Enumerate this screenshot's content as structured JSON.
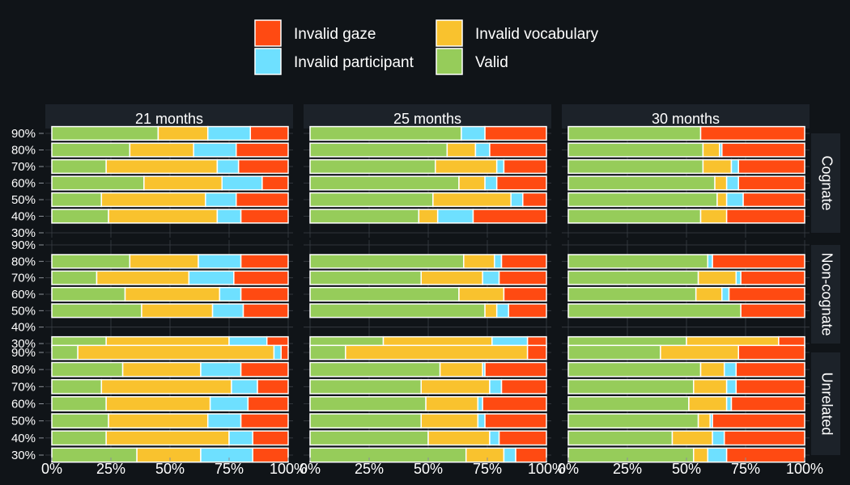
{
  "chart_data": {
    "type": "bar",
    "orientation": "horizontal",
    "stacked": true,
    "background": "#101418",
    "panel_color": "#101418",
    "strip_color": "#1c2229",
    "grid": true,
    "legend_position": "top",
    "legend": [
      {
        "name": "Invalid gaze",
        "color": "#ff4a12"
      },
      {
        "name": "Invalid vocabulary",
        "color": "#f9c22e"
      },
      {
        "name": "Invalid participant",
        "color": "#6ee0ff"
      },
      {
        "name": "Valid",
        "color": "#96cc5a"
      }
    ],
    "stack_order": [
      "Valid",
      "Invalid vocabulary",
      "Invalid participant",
      "Invalid gaze"
    ],
    "columns": [
      "21 months",
      "25 months",
      "30 months"
    ],
    "rows": [
      "Cognate",
      "Non-cognate",
      "Unrelated"
    ],
    "y_ticks": [
      "90%",
      "80%",
      "70%",
      "60%",
      "50%",
      "40%",
      "30%"
    ],
    "x_ticks": [
      "0%",
      "25%",
      "50%",
      "75%",
      "100%"
    ],
    "xlim": [
      0,
      1
    ],
    "panels": [
      {
        "column": "21 months",
        "row": "Cognate",
        "bars": [
          {
            "y": "90%",
            "valid": 0.45,
            "vocabulary": 0.21,
            "participant": 0.18,
            "gaze": 0.16
          },
          {
            "y": "80%",
            "valid": 0.33,
            "vocabulary": 0.27,
            "participant": 0.18,
            "gaze": 0.22
          },
          {
            "y": "70%",
            "valid": 0.23,
            "vocabulary": 0.47,
            "participant": 0.09,
            "gaze": 0.21
          },
          {
            "y": "60%",
            "valid": 0.39,
            "vocabulary": 0.33,
            "participant": 0.17,
            "gaze": 0.11
          },
          {
            "y": "50%",
            "valid": 0.21,
            "vocabulary": 0.44,
            "participant": 0.13,
            "gaze": 0.22
          },
          {
            "y": "40%",
            "valid": 0.24,
            "vocabulary": 0.46,
            "participant": 0.1,
            "gaze": 0.2
          }
        ]
      },
      {
        "column": "25 months",
        "row": "Cognate",
        "bars": [
          {
            "y": "90%",
            "valid": 0.64,
            "vocabulary": 0.0,
            "participant": 0.1,
            "gaze": 0.26
          },
          {
            "y": "80%",
            "valid": 0.58,
            "vocabulary": 0.12,
            "participant": 0.06,
            "gaze": 0.24
          },
          {
            "y": "70%",
            "valid": 0.53,
            "vocabulary": 0.26,
            "participant": 0.03,
            "gaze": 0.18
          },
          {
            "y": "60%",
            "valid": 0.63,
            "vocabulary": 0.11,
            "participant": 0.05,
            "gaze": 0.21
          },
          {
            "y": "50%",
            "valid": 0.52,
            "vocabulary": 0.33,
            "participant": 0.05,
            "gaze": 0.1
          },
          {
            "y": "40%",
            "valid": 0.46,
            "vocabulary": 0.08,
            "participant": 0.15,
            "gaze": 0.31
          }
        ]
      },
      {
        "column": "30 months",
        "row": "Cognate",
        "bars": [
          {
            "y": "90%",
            "valid": 0.56,
            "vocabulary": 0.0,
            "participant": 0.0,
            "gaze": 0.44
          },
          {
            "y": "80%",
            "valid": 0.57,
            "vocabulary": 0.07,
            "participant": 0.01,
            "gaze": 0.35
          },
          {
            "y": "70%",
            "valid": 0.57,
            "vocabulary": 0.12,
            "participant": 0.03,
            "gaze": 0.28
          },
          {
            "y": "60%",
            "valid": 0.62,
            "vocabulary": 0.05,
            "participant": 0.05,
            "gaze": 0.28
          },
          {
            "y": "50%",
            "valid": 0.63,
            "vocabulary": 0.04,
            "participant": 0.07,
            "gaze": 0.26
          },
          {
            "y": "40%",
            "valid": 0.56,
            "vocabulary": 0.11,
            "participant": 0.0,
            "gaze": 0.33
          }
        ]
      },
      {
        "column": "21 months",
        "row": "Non-cognate",
        "bars": [
          {
            "y": "80%",
            "valid": 0.33,
            "vocabulary": 0.29,
            "participant": 0.18,
            "gaze": 0.2
          },
          {
            "y": "70%",
            "valid": 0.19,
            "vocabulary": 0.39,
            "participant": 0.19,
            "gaze": 0.23
          },
          {
            "y": "60%",
            "valid": 0.31,
            "vocabulary": 0.4,
            "participant": 0.09,
            "gaze": 0.2
          },
          {
            "y": "50%",
            "valid": 0.38,
            "vocabulary": 0.3,
            "participant": 0.13,
            "gaze": 0.19
          },
          {
            "y": "30%",
            "valid": 0.23,
            "vocabulary": 0.52,
            "participant": 0.16,
            "gaze": 0.09
          }
        ]
      },
      {
        "column": "25 months",
        "row": "Non-cognate",
        "bars": [
          {
            "y": "80%",
            "valid": 0.65,
            "vocabulary": 0.13,
            "participant": 0.03,
            "gaze": 0.19
          },
          {
            "y": "70%",
            "valid": 0.47,
            "vocabulary": 0.26,
            "participant": 0.07,
            "gaze": 0.2
          },
          {
            "y": "60%",
            "valid": 0.63,
            "vocabulary": 0.19,
            "participant": 0.0,
            "gaze": 0.18
          },
          {
            "y": "50%",
            "valid": 0.74,
            "vocabulary": 0.05,
            "participant": 0.05,
            "gaze": 0.16
          },
          {
            "y": "30%",
            "valid": 0.31,
            "vocabulary": 0.46,
            "participant": 0.15,
            "gaze": 0.08
          }
        ]
      },
      {
        "column": "30 months",
        "row": "Non-cognate",
        "bars": [
          {
            "y": "80%",
            "valid": 0.59,
            "vocabulary": 0.0,
            "participant": 0.02,
            "gaze": 0.39
          },
          {
            "y": "70%",
            "valid": 0.55,
            "vocabulary": 0.16,
            "participant": 0.02,
            "gaze": 0.27
          },
          {
            "y": "60%",
            "valid": 0.54,
            "vocabulary": 0.11,
            "participant": 0.03,
            "gaze": 0.32
          },
          {
            "y": "50%",
            "valid": 0.73,
            "vocabulary": 0.0,
            "participant": 0.0,
            "gaze": 0.27
          },
          {
            "y": "30%",
            "valid": 0.5,
            "vocabulary": 0.39,
            "participant": 0.0,
            "gaze": 0.11
          }
        ]
      },
      {
        "column": "21 months",
        "row": "Unrelated",
        "bars": [
          {
            "y": "90%",
            "valid": 0.11,
            "vocabulary": 0.83,
            "participant": 0.03,
            "gaze": 0.03
          },
          {
            "y": "80%",
            "valid": 0.3,
            "vocabulary": 0.33,
            "participant": 0.17,
            "gaze": 0.2
          },
          {
            "y": "70%",
            "valid": 0.21,
            "vocabulary": 0.55,
            "participant": 0.11,
            "gaze": 0.13
          },
          {
            "y": "60%",
            "valid": 0.23,
            "vocabulary": 0.44,
            "participant": 0.16,
            "gaze": 0.17
          },
          {
            "y": "50%",
            "valid": 0.24,
            "vocabulary": 0.42,
            "participant": 0.14,
            "gaze": 0.2
          },
          {
            "y": "40%",
            "valid": 0.23,
            "vocabulary": 0.52,
            "participant": 0.1,
            "gaze": 0.15
          },
          {
            "y": "30%",
            "valid": 0.36,
            "vocabulary": 0.27,
            "participant": 0.22,
            "gaze": 0.15
          }
        ]
      },
      {
        "column": "25 months",
        "row": "Unrelated",
        "bars": [
          {
            "y": "90%",
            "valid": 0.15,
            "vocabulary": 0.77,
            "participant": 0.0,
            "gaze": 0.08
          },
          {
            "y": "80%",
            "valid": 0.55,
            "vocabulary": 0.18,
            "participant": 0.01,
            "gaze": 0.26
          },
          {
            "y": "70%",
            "valid": 0.47,
            "vocabulary": 0.29,
            "participant": 0.05,
            "gaze": 0.19
          },
          {
            "y": "60%",
            "valid": 0.49,
            "vocabulary": 0.22,
            "participant": 0.02,
            "gaze": 0.27
          },
          {
            "y": "50%",
            "valid": 0.47,
            "vocabulary": 0.24,
            "participant": 0.03,
            "gaze": 0.26
          },
          {
            "y": "40%",
            "valid": 0.5,
            "vocabulary": 0.26,
            "participant": 0.04,
            "gaze": 0.2
          },
          {
            "y": "30%",
            "valid": 0.66,
            "vocabulary": 0.16,
            "participant": 0.05,
            "gaze": 0.13
          }
        ]
      },
      {
        "column": "30 months",
        "row": "Unrelated",
        "bars": [
          {
            "y": "90%",
            "valid": 0.39,
            "vocabulary": 0.33,
            "participant": 0.0,
            "gaze": 0.28
          },
          {
            "y": "80%",
            "valid": 0.56,
            "vocabulary": 0.1,
            "participant": 0.05,
            "gaze": 0.29
          },
          {
            "y": "70%",
            "valid": 0.53,
            "vocabulary": 0.14,
            "participant": 0.04,
            "gaze": 0.29
          },
          {
            "y": "60%",
            "valid": 0.51,
            "vocabulary": 0.16,
            "participant": 0.02,
            "gaze": 0.31
          },
          {
            "y": "50%",
            "valid": 0.55,
            "vocabulary": 0.05,
            "participant": 0.01,
            "gaze": 0.39
          },
          {
            "y": "40%",
            "valid": 0.44,
            "vocabulary": 0.17,
            "participant": 0.05,
            "gaze": 0.34
          },
          {
            "y": "30%",
            "valid": 0.53,
            "vocabulary": 0.06,
            "participant": 0.08,
            "gaze": 0.33
          }
        ]
      }
    ]
  }
}
